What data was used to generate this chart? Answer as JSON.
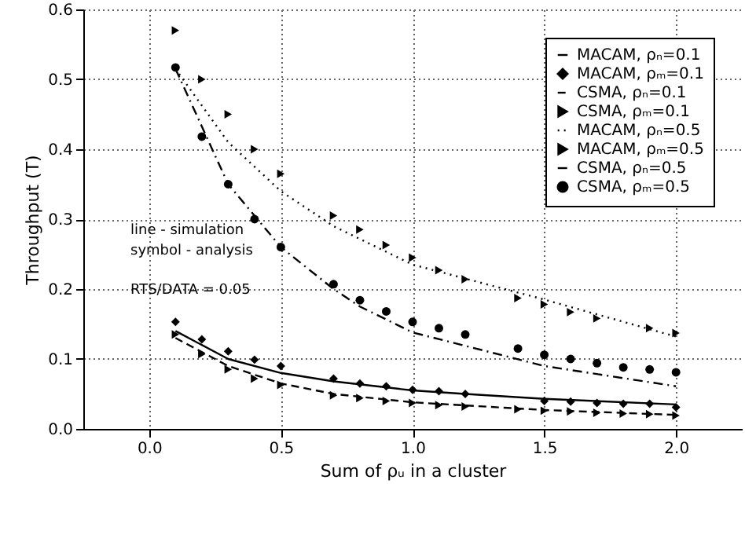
{
  "chart_data": {
    "type": "line",
    "xlabel": "Sum of ρᵤ in a cluster",
    "ylabel": "Throughput (T)",
    "xlim": [
      -0.25,
      2.25
    ],
    "xticks": [
      {
        "value": 0,
        "label": "0.0"
      },
      0.5,
      {
        "value": 1,
        "label": "1.0"
      },
      1.5,
      {
        "value": 2,
        "label": "2.0"
      }
    ],
    "ylim": [
      0,
      0.6
    ],
    "yticks": [
      {
        "value": 0,
        "label": "0.0"
      },
      0.1,
      0.2,
      0.3,
      0.4,
      0.5,
      {
        "value": 0.6,
        "label": "0.6"
      }
    ],
    "grid": true,
    "legend": "top right",
    "annotations": [
      "line - simulation",
      "symbol - analysis",
      "RTS/DATA = 0.05"
    ],
    "series": [
      {
        "name": "MACAM, ρₙ=0.1",
        "color": "#000000",
        "line_style": "solid",
        "x": [
          0.1,
          0.3,
          0.5,
          0.7,
          1.0,
          1.2,
          1.5,
          2.0
        ],
        "values": [
          0.14,
          0.1,
          0.08,
          0.068,
          0.055,
          0.05,
          0.043,
          0.035
        ]
      },
      {
        "name": "MACAM, ρₘ=0.1",
        "color": "#000000",
        "type": "scatter",
        "marker": "diamond",
        "x": [
          0.1,
          0.2,
          0.3,
          0.4,
          0.5,
          0.7,
          0.8,
          0.9,
          1.0,
          1.1,
          1.2,
          1.5,
          1.6,
          1.7,
          1.8,
          1.9,
          2.0
        ],
        "values": [
          0.153,
          0.128,
          0.111,
          0.099,
          0.09,
          0.072,
          0.065,
          0.061,
          0.056,
          0.054,
          0.05,
          0.04,
          0.039,
          0.037,
          0.036,
          0.036,
          0.031
        ]
      },
      {
        "name": "CSMA, ρₙ=0.1",
        "color": "#000000",
        "line_style": "dashed",
        "x": [
          0.1,
          0.3,
          0.5,
          0.7,
          1.0,
          1.5,
          2.0
        ],
        "values": [
          0.13,
          0.09,
          0.065,
          0.05,
          0.038,
          0.027,
          0.02
        ]
      },
      {
        "name": "CSMA, ρₘ=0.1",
        "color": "#000000",
        "type": "scatter",
        "marker": "triangle",
        "x": [
          0.1,
          0.2,
          0.3,
          0.4,
          0.5,
          0.7,
          0.8,
          0.9,
          1.0,
          1.1,
          1.2,
          1.4,
          1.5,
          1.6,
          1.7,
          1.8,
          1.9,
          2.0
        ],
        "values": [
          0.135,
          0.107,
          0.085,
          0.072,
          0.063,
          0.048,
          0.044,
          0.04,
          0.037,
          0.034,
          0.032,
          0.028,
          0.026,
          0.025,
          0.023,
          0.022,
          0.021,
          0.019
        ]
      },
      {
        "name": "MACAM, ρₙ=0.5",
        "color": "#000000",
        "line_style": "dotted",
        "x": [
          0.1,
          0.3,
          0.5,
          0.7,
          1.0,
          1.5,
          2.0
        ],
        "values": [
          0.515,
          0.41,
          0.34,
          0.29,
          0.235,
          0.185,
          0.132
        ]
      },
      {
        "name": "MACAM, ρₘ=0.5",
        "color": "#000000",
        "type": "scatter",
        "marker": "triangle",
        "x": [
          0.1,
          0.2,
          0.3,
          0.4,
          0.5,
          0.7,
          0.8,
          0.9,
          1.0,
          1.1,
          1.2,
          1.4,
          1.5,
          1.6,
          1.7,
          1.9,
          2.0
        ],
        "values": [
          0.57,
          0.5,
          0.45,
          0.4,
          0.365,
          0.305,
          0.285,
          0.263,
          0.245,
          0.227,
          0.214,
          0.187,
          0.178,
          0.167,
          0.158,
          0.144,
          0.137
        ]
      },
      {
        "name": "CSMA, ρₙ=0.5",
        "color": "#000000",
        "line_style": "dashdot",
        "x": [
          0.1,
          0.3,
          0.5,
          0.7,
          0.8,
          1.0,
          1.5,
          2.0
        ],
        "values": [
          0.515,
          0.35,
          0.26,
          0.2,
          0.175,
          0.138,
          0.09,
          0.061
        ]
      },
      {
        "name": "CSMA, ρₘ=0.5",
        "color": "#000000",
        "type": "scatter",
        "marker": "circle",
        "x": [
          0.1,
          0.2,
          0.3,
          0.4,
          0.5,
          0.7,
          0.8,
          0.9,
          1.0,
          1.1,
          1.2,
          1.4,
          1.5,
          1.6,
          1.7,
          1.8,
          1.9,
          2.0
        ],
        "values": [
          0.517,
          0.418,
          0.35,
          0.3,
          0.26,
          0.207,
          0.184,
          0.168,
          0.153,
          0.144,
          0.135,
          0.115,
          0.106,
          0.1,
          0.094,
          0.088,
          0.085,
          0.081
        ]
      }
    ]
  }
}
